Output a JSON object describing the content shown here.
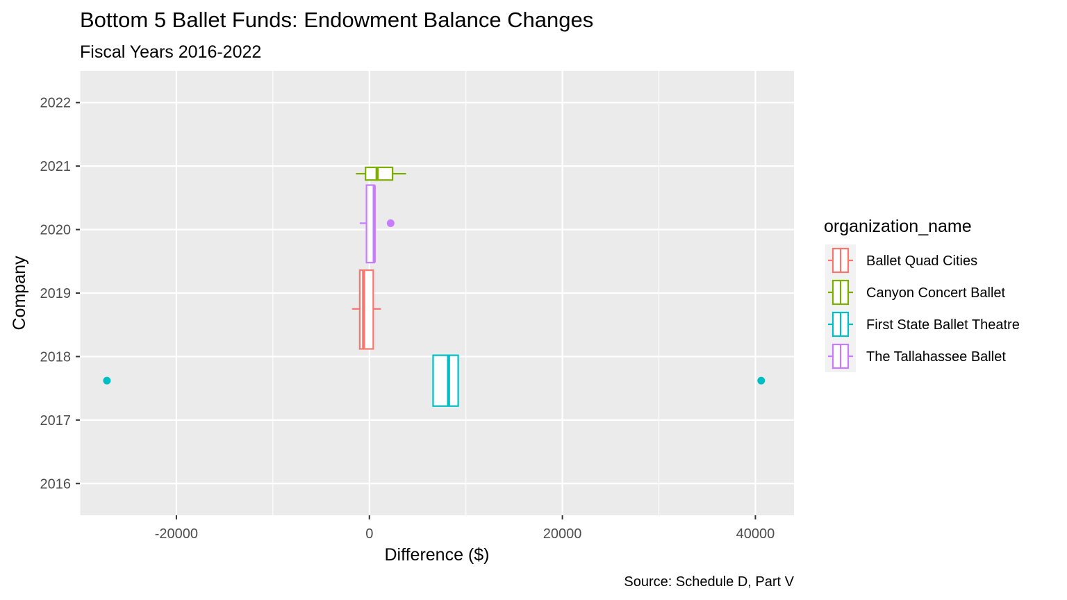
{
  "chart_data": {
    "type": "boxplot",
    "title": "Bottom 5 Ballet Funds: Endowment Balance Changes",
    "subtitle": "Fiscal Years 2016-2022",
    "xlabel": "Difference ($)",
    "ylabel": "Company",
    "caption": "Source: Schedule D, Part V",
    "xlim": [
      -30000,
      44000
    ],
    "ylim": [
      2015.5,
      2022.5
    ],
    "x_ticks": [
      -20000,
      0,
      20000,
      40000
    ],
    "x_tick_labels": [
      "-20000",
      "0",
      "20000",
      "40000"
    ],
    "y_ticks": [
      2016,
      2017,
      2018,
      2019,
      2020,
      2021,
      2022
    ],
    "y_tick_labels": [
      "2016",
      "2017",
      "2018",
      "2019",
      "2020",
      "2021",
      "2022"
    ],
    "grid": true,
    "legend": {
      "title": "organization_name",
      "position": "right",
      "entries": [
        "Ballet Quad Cities",
        "Canyon Concert Ballet",
        "First State Ballet Theatre",
        "The Tallahassee Ballet"
      ]
    },
    "series": [
      {
        "name": "Ballet Quad Cities",
        "color": "#F8766D",
        "y_center": 2018.75,
        "y_low": 2018.12,
        "y_high": 2019.36,
        "whisker_low": -1800,
        "q1": -1000,
        "median": -600,
        "q3": 400,
        "whisker_high": 400,
        "whisker_cap": 1200,
        "outliers": []
      },
      {
        "name": "Canyon Concert Ballet",
        "color": "#7CAE00",
        "y_center": 2020.88,
        "y_low": 2020.78,
        "y_high": 2020.98,
        "whisker_low": -1400,
        "q1": -400,
        "median": 800,
        "q3": 2400,
        "whisker_high": 3800,
        "outliers": []
      },
      {
        "name": "First State Ballet Theatre",
        "color": "#00BFC4",
        "y_center": 2017.62,
        "y_low": 2017.22,
        "y_high": 2018.02,
        "whisker_low": 6600,
        "q1": 6600,
        "median": 8200,
        "q3": 9200,
        "whisker_high": 9200,
        "outliers": [
          {
            "x": -27200,
            "y": 2017.62
          },
          {
            "x": 40600,
            "y": 2017.62
          }
        ]
      },
      {
        "name": "The Tallahassee Ballet",
        "color": "#C77CFF",
        "y_center": 2020.1,
        "y_low": 2019.48,
        "y_high": 2020.7,
        "whisker_low": -1000,
        "q1": -300,
        "median": 500,
        "q3": 500,
        "whisker_high": 600,
        "outliers": [
          {
            "x": 2200,
            "y": 2020.1
          }
        ]
      }
    ]
  }
}
